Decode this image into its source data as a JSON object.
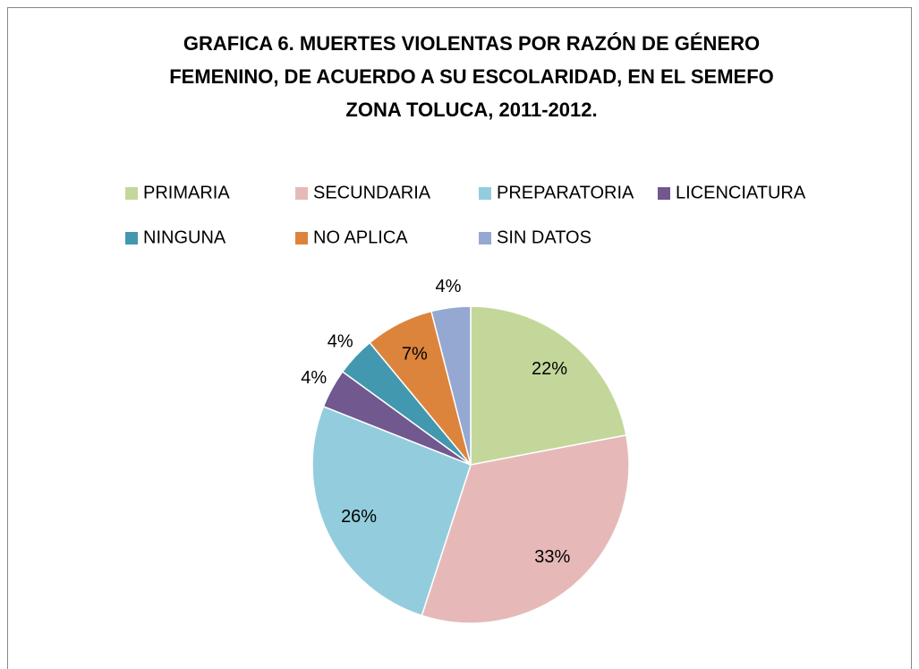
{
  "chart_data": {
    "type": "pie",
    "title": [
      "GRAFICA 6. MUERTES VIOLENTAS POR RAZÓN DE GÉNERO",
      "FEMENINO, DE ACUERDO A SU ESCOLARIDAD, EN EL SEMEFO",
      "ZONA TOLUCA, 2011-2012."
    ],
    "categories": [
      "PRIMARIA",
      "SECUNDARIA",
      "PREPARATORIA",
      "LICENCIATURA",
      "NINGUNA",
      "NO APLICA",
      "SIN DATOS"
    ],
    "values": [
      22,
      33,
      26,
      4,
      4,
      7,
      4
    ],
    "value_labels": [
      "22%",
      "33%",
      "26%",
      "4%",
      "4%",
      "7%",
      "4%"
    ],
    "colors": [
      "#c4d79b",
      "#e6b9b8",
      "#93cddd",
      "#71588f",
      "#4298ae",
      "#dd843c",
      "#95a8d2"
    ],
    "legend": "top"
  }
}
